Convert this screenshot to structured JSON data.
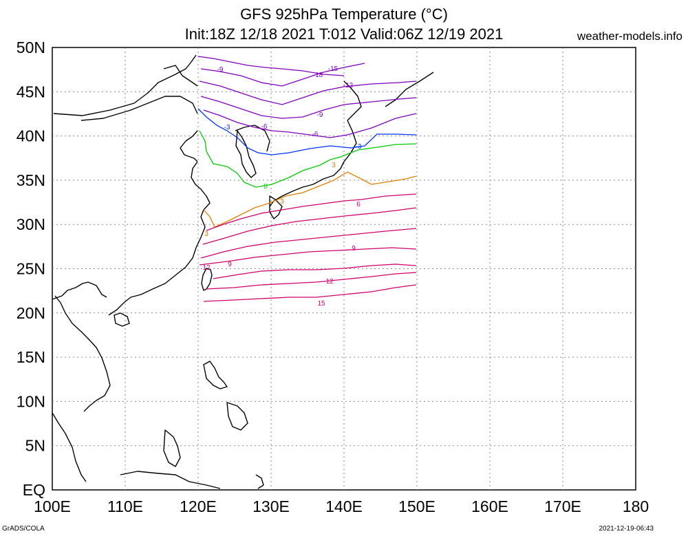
{
  "title": {
    "line1": "GFS 925hPa Temperature (°C)",
    "line2": "Init:18Z 12/18 2021 T:012 Valid:06Z 12/19 2021"
  },
  "site": "weather-models.info",
  "footer": {
    "left": "GrADS/COLA",
    "right": "2021-12-19-06:43"
  },
  "map": {
    "lon_ticks": [
      "100E",
      "110E",
      "120E",
      "130E",
      "140E",
      "150E",
      "160E",
      "170E",
      "180"
    ],
    "lat_ticks": [
      "EQ",
      "5N",
      "10N",
      "15N",
      "20N",
      "25N",
      "30N",
      "35N",
      "40N",
      "45N",
      "50N"
    ],
    "lon_range": [
      100,
      180
    ],
    "lat_range": [
      0,
      50
    ],
    "grid": "dotted",
    "data_extent": {
      "lon": [
        120,
        150
      ],
      "lat": [
        20,
        50
      ]
    }
  },
  "contours": {
    "interval": 3,
    "colors": {
      "-18": "#8000c0",
      "-15": "#8000c0",
      "-12": "#8000c0",
      "-9": "#8000c0",
      "-6": "#8000c0",
      "-3": "#0033ff",
      "0": "#00cc00",
      "3": "#e08000",
      "6": "#d0006f",
      "9": "#d0006f",
      "12": "#d0006f",
      "15": "#d0006f"
    },
    "labels": [
      {
        "text": "-9"
      },
      {
        "text": "-15"
      },
      {
        "text": "-18"
      },
      {
        "text": "-12"
      },
      {
        "text": "-6"
      },
      {
        "text": "-9"
      },
      {
        "text": "-6"
      },
      {
        "text": "-3"
      },
      {
        "text": "-3"
      },
      {
        "text": "0"
      },
      {
        "text": "3"
      },
      {
        "text": "3"
      },
      {
        "text": "3"
      },
      {
        "text": "6"
      },
      {
        "text": "9"
      },
      {
        "text": "9"
      },
      {
        "text": "12"
      },
      {
        "text": "12"
      },
      {
        "text": "15"
      }
    ]
  }
}
